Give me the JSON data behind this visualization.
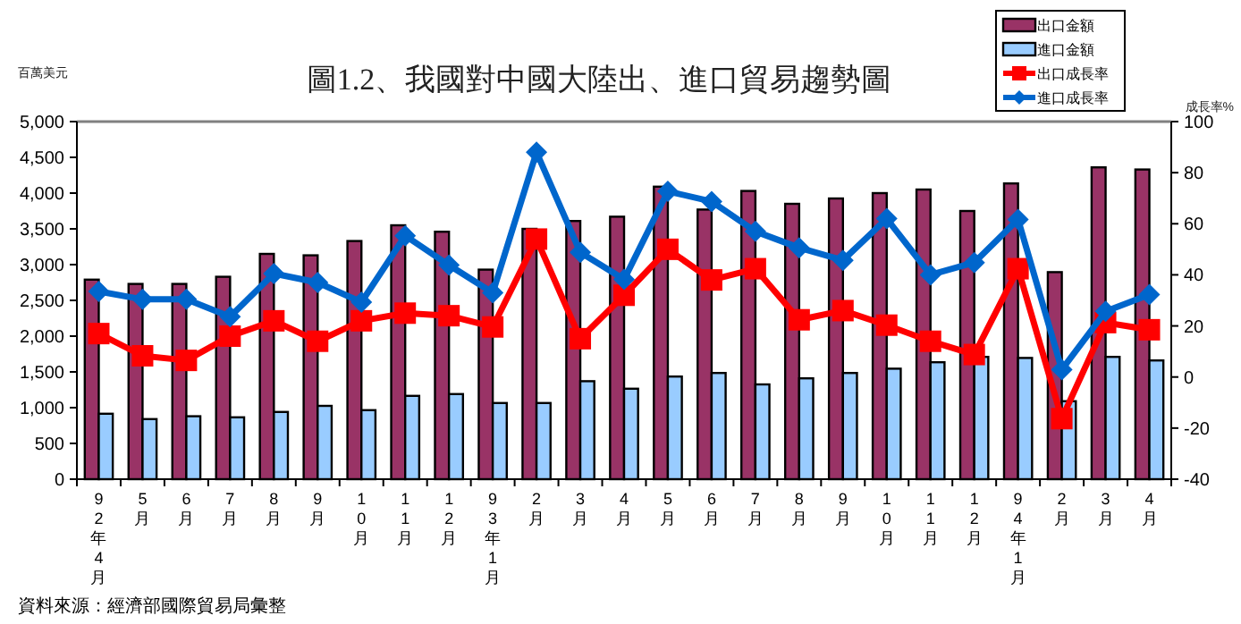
{
  "chart_data": {
    "type": "bar",
    "title": "圖1.2、我國對中國大陸出、進口貿易趨勢圖",
    "ylabel": "百萬美元",
    "y2label": "成長率%",
    "categories": [
      "92年4月",
      "5月",
      "6月",
      "7月",
      "8月",
      "9月",
      "10月",
      "11月",
      "12月",
      "93年1月",
      "2月",
      "3月",
      "4月",
      "5月",
      "6月",
      "7月",
      "8月",
      "9月",
      "10月",
      "11月",
      "12月",
      "94年1月",
      "2月",
      "3月",
      "4月"
    ],
    "series": [
      {
        "name": "出口金額",
        "type": "bar",
        "color": "#993366",
        "values": [
          2790,
          2730,
          2730,
          2830,
          3150,
          3130,
          3330,
          3550,
          3460,
          2930,
          3500,
          3610,
          3670,
          4090,
          3770,
          4030,
          3850,
          3925,
          4000,
          4050,
          3750,
          4135,
          2895,
          4360,
          4330
        ]
      },
      {
        "name": "進口金額",
        "type": "bar",
        "color": "#99ccff",
        "values": [
          915,
          840,
          880,
          865,
          940,
          1025,
          965,
          1165,
          1190,
          1065,
          1065,
          1370,
          1265,
          1435,
          1485,
          1325,
          1410,
          1485,
          1545,
          1635,
          1710,
          1695,
          1090,
          1710,
          1660
        ]
      },
      {
        "name": "出口成長率",
        "type": "line",
        "axis": "y2",
        "color": "#ff0000",
        "marker": "square",
        "values": [
          17,
          8.3,
          6.5,
          16,
          22,
          14,
          22,
          25,
          24,
          19.6,
          54,
          15,
          32,
          50,
          38,
          42.4,
          22.4,
          26,
          20.3,
          14,
          8.8,
          42.4,
          -16.3,
          21.3,
          18.5
        ]
      },
      {
        "name": "進口成長率",
        "type": "line",
        "axis": "y2",
        "color": "#0066cc",
        "marker": "diamond",
        "values": [
          33.5,
          30.4,
          30.4,
          23.6,
          40.5,
          37,
          29.3,
          55.3,
          43.8,
          33,
          88,
          48.8,
          38.2,
          72.7,
          68.7,
          57,
          50.6,
          45.7,
          62,
          40,
          44.8,
          61.7,
          2.9,
          25.7,
          32.3
        ]
      }
    ],
    "ylim": [
      0,
      5000
    ],
    "yticks": [
      {
        "value": 0,
        "label": "0"
      },
      {
        "value": 500,
        "label": "500"
      },
      {
        "value": 1000,
        "label": "1,000"
      },
      {
        "value": 1500,
        "label": "1,500"
      },
      {
        "value": 2000,
        "label": "2,000"
      },
      {
        "value": 2500,
        "label": "2,500"
      },
      {
        "value": 3000,
        "label": "3,000"
      },
      {
        "value": 3500,
        "label": "3,500"
      },
      {
        "value": 4000,
        "label": "4,000"
      },
      {
        "value": 4500,
        "label": "4,500"
      },
      {
        "value": 5000,
        "label": "5,000"
      }
    ],
    "y2lim": [
      -40,
      100
    ],
    "y2ticks": [
      {
        "value": -40,
        "label": "-40"
      },
      {
        "value": -20,
        "label": "-20"
      },
      {
        "value": 0,
        "label": "0"
      },
      {
        "value": 20,
        "label": "20"
      },
      {
        "value": 40,
        "label": "40"
      },
      {
        "value": 60,
        "label": "60"
      },
      {
        "value": 80,
        "label": "80"
      },
      {
        "value": 100,
        "label": "100"
      }
    ],
    "legend": "top right",
    "annotations": [
      "資料來源：經濟部國際貿易局彙整"
    ]
  }
}
